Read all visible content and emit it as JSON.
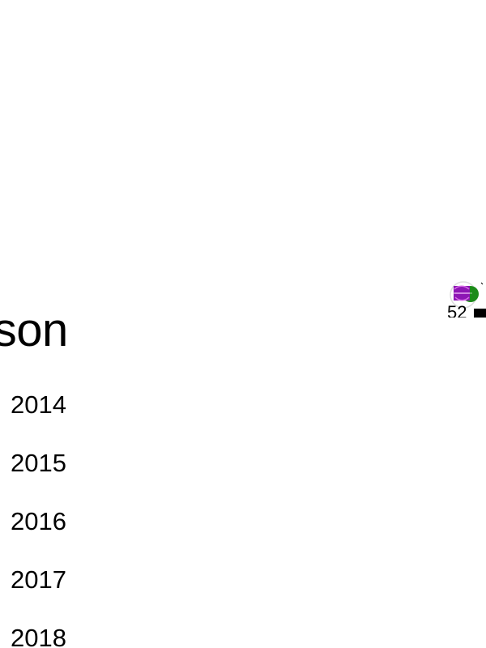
{
  "section": {
    "heading": "ason"
  },
  "seasons": [
    {
      "label": "2014"
    },
    {
      "label": "2015"
    },
    {
      "label": "2016"
    },
    {
      "label": "2017"
    },
    {
      "label": "2018"
    }
  ],
  "badge": {
    "icon": "team-logo-icon",
    "number": "52",
    "colors": {
      "purple": "#8d16b4",
      "green": "#1c8a1a",
      "outline": "#dddddd"
    }
  }
}
